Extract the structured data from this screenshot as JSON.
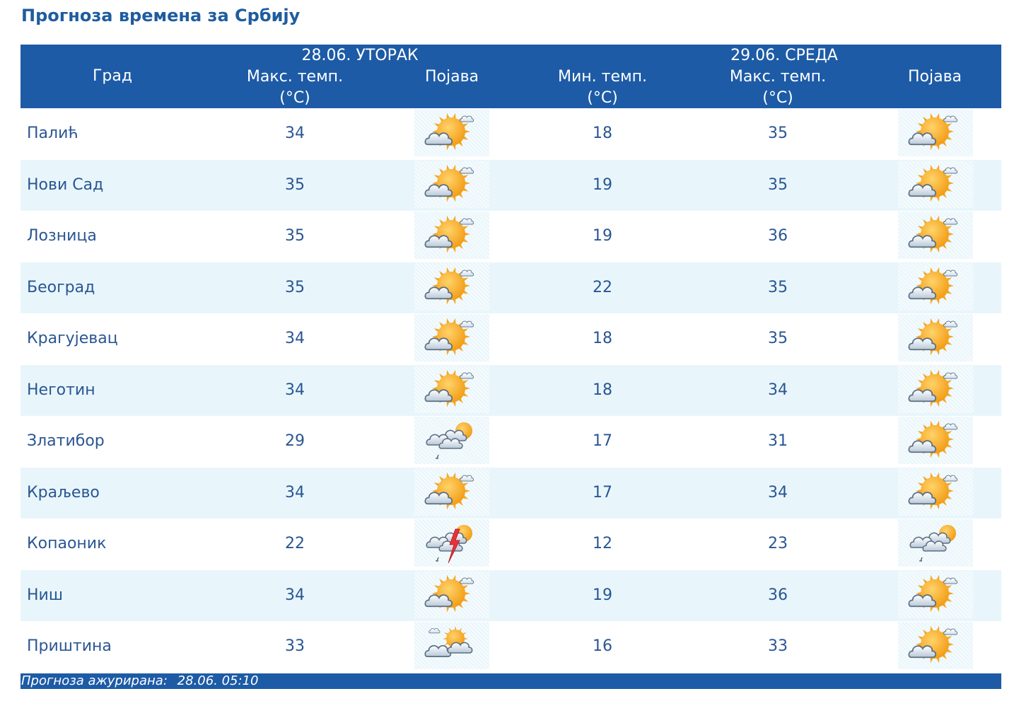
{
  "title": "Прогноза времена за Србију",
  "header": {
    "city": "Град",
    "day1": "28.06. УТОРАК",
    "day2": "29.06. СРЕДА",
    "max_temp": "Макс. темп.",
    "min_temp": "Мин. темп.",
    "unit": "(°C)",
    "phenomenon": "Појава"
  },
  "rows": [
    {
      "city": "Палић",
      "d1_max": "34",
      "d1_icon": "sunny-cloudy-icon",
      "d2_min": "18",
      "d2_max": "35",
      "d2_icon": "sunny-cloudy-icon"
    },
    {
      "city": "Нови Сад",
      "d1_max": "35",
      "d1_icon": "sunny-cloudy-icon",
      "d2_min": "19",
      "d2_max": "35",
      "d2_icon": "sunny-cloudy-icon"
    },
    {
      "city": "Лозница",
      "d1_max": "35",
      "d1_icon": "sunny-cloudy-icon",
      "d2_min": "19",
      "d2_max": "36",
      "d2_icon": "sunny-cloudy-icon"
    },
    {
      "city": "Београд",
      "d1_max": "35",
      "d1_icon": "sunny-cloudy-icon",
      "d2_min": "22",
      "d2_max": "35",
      "d2_icon": "sunny-cloudy-icon"
    },
    {
      "city": "Крагујевац",
      "d1_max": "34",
      "d1_icon": "sunny-cloudy-icon",
      "d2_min": "18",
      "d2_max": "35",
      "d2_icon": "sunny-cloudy-icon"
    },
    {
      "city": "Неготин",
      "d1_max": "34",
      "d1_icon": "sunny-cloudy-icon",
      "d2_min": "18",
      "d2_max": "34",
      "d2_icon": "sunny-cloudy-icon"
    },
    {
      "city": "Златибор",
      "d1_max": "29",
      "d1_icon": "cloudy-shower-icon",
      "d2_min": "17",
      "d2_max": "31",
      "d2_icon": "sunny-cloudy-icon"
    },
    {
      "city": "Краљево",
      "d1_max": "34",
      "d1_icon": "sunny-cloudy-icon",
      "d2_min": "17",
      "d2_max": "34",
      "d2_icon": "sunny-cloudy-icon"
    },
    {
      "city": "Копаоник",
      "d1_max": "22",
      "d1_icon": "thunderstorm-icon",
      "d2_min": "12",
      "d2_max": "23",
      "d2_icon": "cloudy-shower-icon"
    },
    {
      "city": "Ниш",
      "d1_max": "34",
      "d1_icon": "sunny-cloudy-icon",
      "d2_min": "19",
      "d2_max": "36",
      "d2_icon": "sunny-cloudy-icon"
    },
    {
      "city": "Приштина",
      "d1_max": "33",
      "d1_icon": "partly-cloudy-icon",
      "d2_min": "16",
      "d2_max": "33",
      "d2_icon": "sunny-cloudy-icon"
    }
  ],
  "footer": {
    "updated_label": "Прогноза ажурирана:",
    "updated_value": "28.06. 05:10"
  },
  "colors": {
    "header_bg": "#1d5ba6",
    "alt_row_bg": "#e8f6fc",
    "text": "#2a5693",
    "title": "#1f5c9e"
  }
}
